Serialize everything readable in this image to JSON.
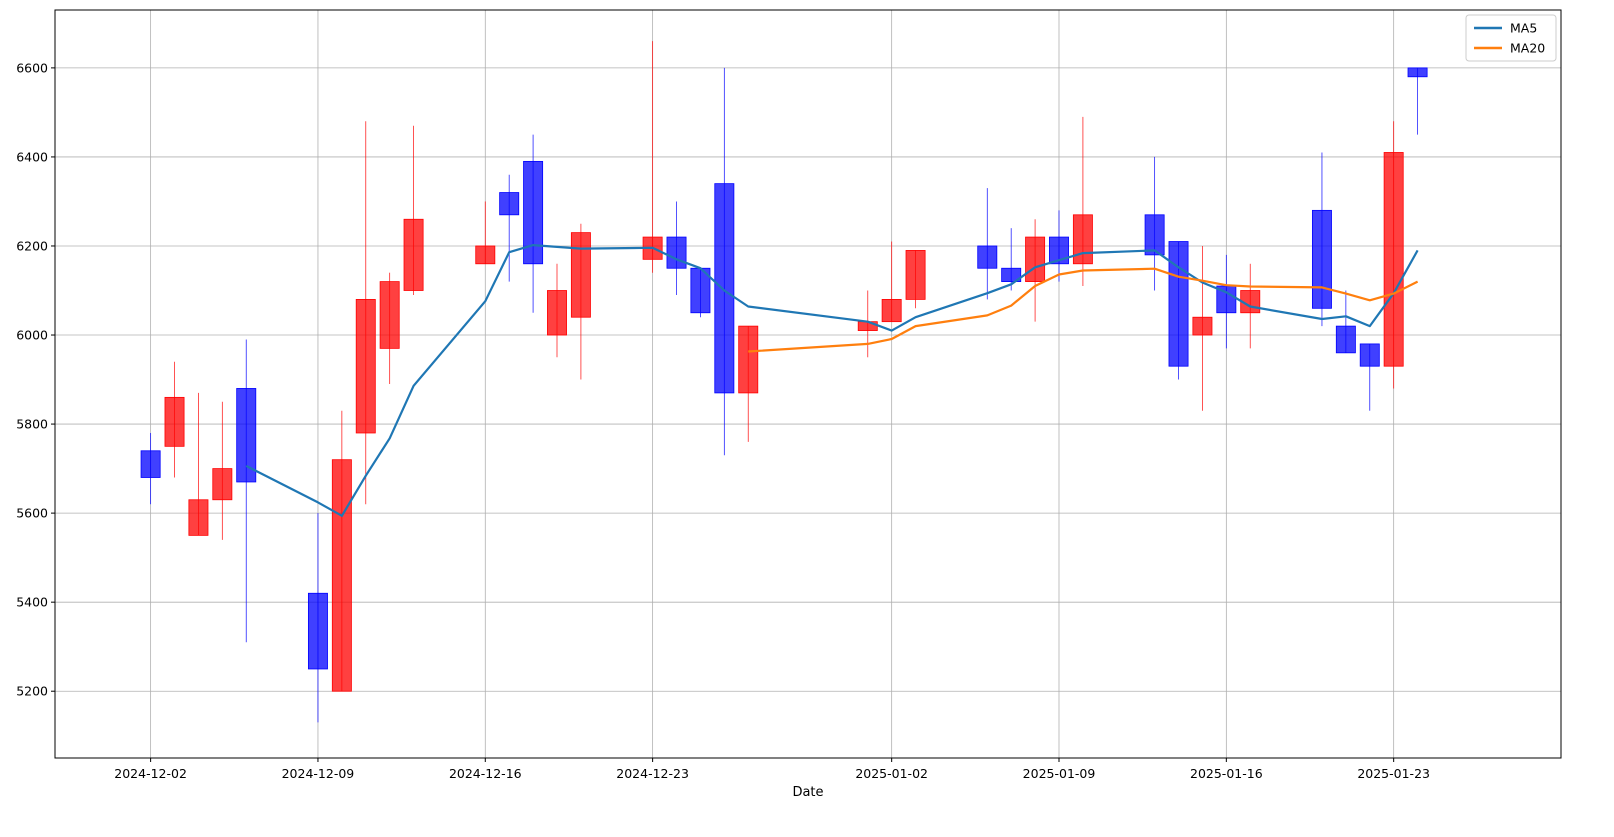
{
  "chart_data": {
    "type": "candlestick",
    "title": "",
    "xlabel": "Date",
    "ylabel": "",
    "ylim": [
      5050,
      6730
    ],
    "xlim": [
      "2024-11-28",
      "2025-01-30"
    ],
    "grid": true,
    "legend_position": "top-right",
    "colors": {
      "up": "#ff0000",
      "down": "#0000ff",
      "ma5": "#1f77b4",
      "ma20": "#ff7f0e",
      "grid": "#b0b0b0"
    },
    "y_ticks": [
      "5200",
      "5400",
      "5600",
      "5800",
      "6000",
      "6200",
      "6400",
      "6600"
    ],
    "x_ticks": [
      "2024-12-02",
      "2024-12-09",
      "2024-12-16",
      "2024-12-23",
      "2025-01-02",
      "2025-01-09",
      "2025-01-16",
      "2025-01-23"
    ],
    "legend": [
      {
        "label": "MA5",
        "color": "#1f77b4"
      },
      {
        "label": "MA20",
        "color": "#ff7f0e"
      }
    ],
    "candles": [
      {
        "date": "2024-12-02",
        "open": 5740,
        "close": 5680,
        "high": 5780,
        "low": 5620
      },
      {
        "date": "2024-12-03",
        "open": 5750,
        "close": 5860,
        "high": 5940,
        "low": 5680
      },
      {
        "date": "2024-12-04",
        "open": 5550,
        "close": 5630,
        "high": 5870,
        "low": 5550
      },
      {
        "date": "2024-12-05",
        "open": 5630,
        "close": 5700,
        "high": 5850,
        "low": 5540
      },
      {
        "date": "2024-12-06",
        "open": 5880,
        "close": 5670,
        "high": 5990,
        "low": 5310
      },
      {
        "date": "2024-12-09",
        "open": 5420,
        "close": 5250,
        "high": 5600,
        "low": 5130
      },
      {
        "date": "2024-12-10",
        "open": 5200,
        "close": 5720,
        "high": 5830,
        "low": 5200
      },
      {
        "date": "2024-12-11",
        "open": 5780,
        "close": 6080,
        "high": 6480,
        "low": 5620
      },
      {
        "date": "2024-12-12",
        "open": 5970,
        "close": 6120,
        "high": 6140,
        "low": 5890
      },
      {
        "date": "2024-12-13",
        "open": 6100,
        "close": 6260,
        "high": 6470,
        "low": 6090
      },
      {
        "date": "2024-12-16",
        "open": 6160,
        "close": 6200,
        "high": 6300,
        "low": 6160
      },
      {
        "date": "2024-12-17",
        "open": 6320,
        "close": 6270,
        "high": 6360,
        "low": 6120
      },
      {
        "date": "2024-12-18",
        "open": 6390,
        "close": 6160,
        "high": 6450,
        "low": 6050
      },
      {
        "date": "2024-12-19",
        "open": 6000,
        "close": 6100,
        "high": 6160,
        "low": 5950
      },
      {
        "date": "2024-12-20",
        "open": 6040,
        "close": 6230,
        "high": 6250,
        "low": 5900
      },
      {
        "date": "2024-12-23",
        "open": 6170,
        "close": 6220,
        "high": 6660,
        "low": 6140
      },
      {
        "date": "2024-12-24",
        "open": 6220,
        "close": 6150,
        "high": 6300,
        "low": 6090
      },
      {
        "date": "2024-12-25",
        "open": 6150,
        "close": 6050,
        "high": 6150,
        "low": 6040
      },
      {
        "date": "2024-12-26",
        "open": 6340,
        "close": 5870,
        "high": 6600,
        "low": 5730
      },
      {
        "date": "2024-12-27",
        "open": 5870,
        "close": 6020,
        "high": 6020,
        "low": 5760
      },
      {
        "date": "2025-01-01",
        "open": 6010,
        "close": 6030,
        "high": 6100,
        "low": 5950
      },
      {
        "date": "2025-01-02",
        "open": 6030,
        "close": 6080,
        "high": 6210,
        "low": 6030
      },
      {
        "date": "2025-01-03",
        "open": 6080,
        "close": 6190,
        "high": 6190,
        "low": 6060
      },
      {
        "date": "2025-01-06",
        "open": 6200,
        "close": 6150,
        "high": 6330,
        "low": 6080
      },
      {
        "date": "2025-01-07",
        "open": 6150,
        "close": 6120,
        "high": 6240,
        "low": 6100
      },
      {
        "date": "2025-01-08",
        "open": 6120,
        "close": 6220,
        "high": 6260,
        "low": 6030
      },
      {
        "date": "2025-01-09",
        "open": 6220,
        "close": 6160,
        "high": 6280,
        "low": 6120
      },
      {
        "date": "2025-01-10",
        "open": 6160,
        "close": 6270,
        "high": 6490,
        "low": 6110
      },
      {
        "date": "2025-01-13",
        "open": 6270,
        "close": 6180,
        "high": 6400,
        "low": 6100
      },
      {
        "date": "2025-01-14",
        "open": 6210,
        "close": 5930,
        "high": 6210,
        "low": 5900
      },
      {
        "date": "2025-01-15",
        "open": 6000,
        "close": 6040,
        "high": 6200,
        "low": 5830
      },
      {
        "date": "2025-01-16",
        "open": 6110,
        "close": 6050,
        "high": 6180,
        "low": 5970
      },
      {
        "date": "2025-01-17",
        "open": 6050,
        "close": 6100,
        "high": 6160,
        "low": 5970
      },
      {
        "date": "2025-01-20",
        "open": 6280,
        "close": 6060,
        "high": 6410,
        "low": 6020
      },
      {
        "date": "2025-01-21",
        "open": 6020,
        "close": 5960,
        "high": 6100,
        "low": 5960
      },
      {
        "date": "2025-01-22",
        "open": 5980,
        "close": 5930,
        "high": 5980,
        "low": 5830
      },
      {
        "date": "2025-01-23",
        "open": 5930,
        "close": 6410,
        "high": 6480,
        "low": 5880
      },
      {
        "date": "2025-01-24",
        "open": 6600,
        "close": 6580,
        "high": 6600,
        "low": 6450
      }
    ],
    "series": [
      {
        "name": "MA5",
        "color": "#1f77b4",
        "points": [
          {
            "date": "2024-12-06",
            "value": 5706
          },
          {
            "date": "2024-12-09",
            "value": 5624
          },
          {
            "date": "2024-12-10",
            "value": 5594
          },
          {
            "date": "2024-12-11",
            "value": 5684
          },
          {
            "date": "2024-12-12",
            "value": 5768
          },
          {
            "date": "2024-12-13",
            "value": 5886
          },
          {
            "date": "2024-12-16",
            "value": 6076
          },
          {
            "date": "2024-12-17",
            "value": 6186
          },
          {
            "date": "2024-12-18",
            "value": 6202
          },
          {
            "date": "2024-12-20",
            "value": 6194
          },
          {
            "date": "2024-12-23",
            "value": 6196
          },
          {
            "date": "2024-12-24",
            "value": 6170
          },
          {
            "date": "2024-12-25",
            "value": 6150
          },
          {
            "date": "2024-12-26",
            "value": 6100
          },
          {
            "date": "2024-12-27",
            "value": 6064
          },
          {
            "date": "2025-01-01",
            "value": 6030
          },
          {
            "date": "2025-01-02",
            "value": 6010
          },
          {
            "date": "2025-01-03",
            "value": 6040
          },
          {
            "date": "2025-01-06",
            "value": 6094
          },
          {
            "date": "2025-01-07",
            "value": 6114
          },
          {
            "date": "2025-01-08",
            "value": 6152
          },
          {
            "date": "2025-01-09",
            "value": 6168
          },
          {
            "date": "2025-01-10",
            "value": 6184
          },
          {
            "date": "2025-01-13",
            "value": 6190
          },
          {
            "date": "2025-01-14",
            "value": 6152
          },
          {
            "date": "2025-01-15",
            "value": 6118
          },
          {
            "date": "2025-01-16",
            "value": 6096
          },
          {
            "date": "2025-01-17",
            "value": 6064
          },
          {
            "date": "2025-01-20",
            "value": 6036
          },
          {
            "date": "2025-01-21",
            "value": 6042
          },
          {
            "date": "2025-01-22",
            "value": 6020
          },
          {
            "date": "2025-01-23",
            "value": 6094
          },
          {
            "date": "2025-01-24",
            "value": 6190
          }
        ]
      },
      {
        "name": "MA20",
        "color": "#ff7f0e",
        "points": [
          {
            "date": "2024-12-27",
            "value": 5963
          },
          {
            "date": "2025-01-01",
            "value": 5980
          },
          {
            "date": "2025-01-02",
            "value": 5991
          },
          {
            "date": "2025-01-03",
            "value": 6020
          },
          {
            "date": "2025-01-06",
            "value": 6044
          },
          {
            "date": "2025-01-07",
            "value": 6066
          },
          {
            "date": "2025-01-08",
            "value": 6110
          },
          {
            "date": "2025-01-09",
            "value": 6136
          },
          {
            "date": "2025-01-10",
            "value": 6145
          },
          {
            "date": "2025-01-13",
            "value": 6149
          },
          {
            "date": "2025-01-14",
            "value": 6131
          },
          {
            "date": "2025-01-15",
            "value": 6122
          },
          {
            "date": "2025-01-16",
            "value": 6112
          },
          {
            "date": "2025-01-17",
            "value": 6109
          },
          {
            "date": "2025-01-20",
            "value": 6107
          },
          {
            "date": "2025-01-21",
            "value": 6093
          },
          {
            "date": "2025-01-22",
            "value": 6078
          },
          {
            "date": "2025-01-23",
            "value": 6093
          },
          {
            "date": "2025-01-24",
            "value": 6120
          }
        ]
      }
    ]
  }
}
